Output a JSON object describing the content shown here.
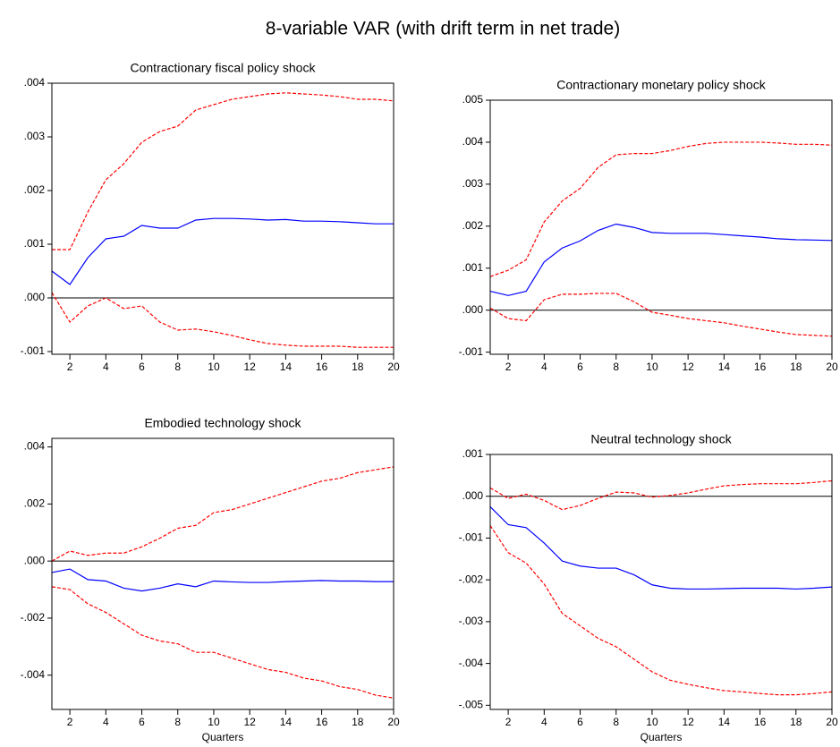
{
  "title": "8-variable VAR (with drift term in net trade)",
  "chart_data": [
    {
      "type": "line",
      "title": "Contractionary fiscal policy shock",
      "x": [
        1,
        2,
        3,
        4,
        5,
        6,
        7,
        8,
        9,
        10,
        11,
        12,
        13,
        14,
        15,
        16,
        17,
        18,
        19,
        20
      ],
      "xlim": [
        1,
        20
      ],
      "xticks": [
        2,
        4,
        6,
        8,
        10,
        12,
        14,
        16,
        18,
        20
      ],
      "ylim": [
        -0.00105,
        0.004
      ],
      "yticks": [
        {
          "value": -0.001,
          "label": "-.001"
        },
        {
          "value": 0,
          "label": ".000"
        },
        {
          "value": 0.001,
          "label": ".001"
        },
        {
          "value": 0.002,
          "label": ".002"
        },
        {
          "value": 0.003,
          "label": ".003"
        },
        {
          "value": 0.004,
          "label": ".004"
        }
      ],
      "hline": 0,
      "series": [
        {
          "color": "#0000ff",
          "style": "solid",
          "values": [
            0.0005,
            0.00025,
            0.00075,
            0.0011,
            0.00115,
            0.00135,
            0.0013,
            0.0013,
            0.00145,
            0.00148,
            0.00148,
            0.00147,
            0.00145,
            0.00146,
            0.00143,
            0.00143,
            0.00142,
            0.0014,
            0.00138,
            0.00138
          ]
        },
        {
          "color": "#ff0000",
          "style": "dashed",
          "values": [
            0.0009,
            0.0009,
            0.0016,
            0.0022,
            0.0025,
            0.0029,
            0.0031,
            0.0032,
            0.0035,
            0.0036,
            0.0037,
            0.00375,
            0.0038,
            0.00382,
            0.0038,
            0.00378,
            0.00375,
            0.0037,
            0.0037,
            0.00367
          ]
        },
        {
          "color": "#ff0000",
          "style": "dashed",
          "values": [
            0.0001,
            -0.00045,
            -0.00015,
            0,
            -0.0002,
            -0.00015,
            -0.00045,
            -0.0006,
            -0.00058,
            -0.00063,
            -0.0007,
            -0.00078,
            -0.00085,
            -0.00088,
            -0.0009,
            -0.0009,
            -0.0009,
            -0.00092,
            -0.00092,
            -0.00092
          ]
        }
      ]
    },
    {
      "type": "line",
      "title": "Contractionary monetary policy shock",
      "x": [
        1,
        2,
        3,
        4,
        5,
        6,
        7,
        8,
        9,
        10,
        11,
        12,
        13,
        14,
        15,
        16,
        17,
        18,
        19,
        20
      ],
      "xlim": [
        1,
        20
      ],
      "xticks": [
        2,
        4,
        6,
        8,
        10,
        12,
        14,
        16,
        18,
        20
      ],
      "ylim": [
        -0.00105,
        0.005
      ],
      "yticks": [
        {
          "value": -0.001,
          "label": "-.001"
        },
        {
          "value": 0,
          "label": ".000"
        },
        {
          "value": 0.001,
          "label": ".001"
        },
        {
          "value": 0.002,
          "label": ".002"
        },
        {
          "value": 0.003,
          "label": ".003"
        },
        {
          "value": 0.004,
          "label": ".004"
        },
        {
          "value": 0.005,
          "label": ".005"
        }
      ],
      "hline": 0,
      "series": [
        {
          "color": "#0000ff",
          "style": "solid",
          "values": [
            0.00045,
            0.00035,
            0.00045,
            0.00115,
            0.00148,
            0.00165,
            0.0019,
            0.00205,
            0.00197,
            0.00185,
            0.00183,
            0.00183,
            0.00183,
            0.0018,
            0.00177,
            0.00174,
            0.0017,
            0.00168,
            0.00167,
            0.00166
          ]
        },
        {
          "color": "#ff0000",
          "style": "dashed",
          "values": [
            0.0008,
            0.00095,
            0.0012,
            0.0021,
            0.0026,
            0.0029,
            0.0034,
            0.0037,
            0.00373,
            0.00373,
            0.0038,
            0.0039,
            0.00397,
            0.004,
            0.004,
            0.004,
            0.00398,
            0.00395,
            0.00395,
            0.00393
          ]
        },
        {
          "color": "#ff0000",
          "style": "dashed",
          "values": [
            5e-05,
            -0.0002,
            -0.00025,
            0.00025,
            0.00038,
            0.00038,
            0.0004,
            0.0004,
            0.0002,
            -5e-05,
            -0.00012,
            -0.0002,
            -0.00025,
            -0.0003,
            -0.00038,
            -0.00045,
            -0.00052,
            -0.00058,
            -0.0006,
            -0.00062
          ]
        }
      ]
    },
    {
      "type": "line",
      "title": "Embodied technology shock",
      "xlabel": "Quarters",
      "x": [
        1,
        2,
        3,
        4,
        5,
        6,
        7,
        8,
        9,
        10,
        11,
        12,
        13,
        14,
        15,
        16,
        17,
        18,
        19,
        20
      ],
      "xlim": [
        1,
        20
      ],
      "xticks": [
        2,
        4,
        6,
        8,
        10,
        12,
        14,
        16,
        18,
        20
      ],
      "ylim": [
        -0.0052,
        0.0043
      ],
      "yticks": [
        {
          "value": -0.004,
          "label": "-.004"
        },
        {
          "value": -0.002,
          "label": "-.002"
        },
        {
          "value": 0,
          "label": ".000"
        },
        {
          "value": 0.002,
          "label": ".002"
        },
        {
          "value": 0.004,
          "label": ".004"
        }
      ],
      "hline": 0,
      "series": [
        {
          "color": "#0000ff",
          "style": "solid",
          "values": [
            -0.0004,
            -0.00028,
            -0.00065,
            -0.0007,
            -0.00095,
            -0.00105,
            -0.00095,
            -0.0008,
            -0.0009,
            -0.0007,
            -0.00073,
            -0.00075,
            -0.00075,
            -0.00072,
            -0.0007,
            -0.00068,
            -0.0007,
            -0.0007,
            -0.00072,
            -0.00072
          ]
        },
        {
          "color": "#ff0000",
          "style": "dashed",
          "values": [
            0,
            0.00035,
            0.0002,
            0.00028,
            0.00028,
            0.0005,
            0.0008,
            0.00115,
            0.00125,
            0.0017,
            0.0018,
            0.002,
            0.0022,
            0.0024,
            0.0026,
            0.0028,
            0.0029,
            0.0031,
            0.0032,
            0.0033
          ]
        },
        {
          "color": "#ff0000",
          "style": "dashed",
          "values": [
            -0.0009,
            -0.001,
            -0.0015,
            -0.0018,
            -0.0022,
            -0.0026,
            -0.0028,
            -0.0029,
            -0.0032,
            -0.0032,
            -0.0034,
            -0.0036,
            -0.0038,
            -0.0039,
            -0.0041,
            -0.0042,
            -0.0044,
            -0.0045,
            -0.0047,
            -0.0048
          ]
        }
      ]
    },
    {
      "type": "line",
      "title": "Neutral technology shock",
      "xlabel": "Quarters",
      "x": [
        1,
        2,
        3,
        4,
        5,
        6,
        7,
        8,
        9,
        10,
        11,
        12,
        13,
        14,
        15,
        16,
        17,
        18,
        19,
        20
      ],
      "xlim": [
        1,
        20
      ],
      "xticks": [
        2,
        4,
        6,
        8,
        10,
        12,
        14,
        16,
        18,
        20
      ],
      "ylim": [
        -0.0051,
        0.001
      ],
      "yticks": [
        {
          "value": -0.005,
          "label": "-.005"
        },
        {
          "value": -0.004,
          "label": "-.004"
        },
        {
          "value": -0.003,
          "label": "-.003"
        },
        {
          "value": -0.002,
          "label": "-.002"
        },
        {
          "value": -0.001,
          "label": "-.001"
        },
        {
          "value": 0,
          "label": ".000"
        },
        {
          "value": 0.001,
          "label": ".001"
        }
      ],
      "hline": 0,
      "series": [
        {
          "color": "#0000ff",
          "style": "solid",
          "values": [
            -0.00025,
            -0.00068,
            -0.00075,
            -0.00112,
            -0.00155,
            -0.00167,
            -0.00172,
            -0.00172,
            -0.00188,
            -0.00212,
            -0.0022,
            -0.00222,
            -0.00222,
            -0.00221,
            -0.0022,
            -0.0022,
            -0.0022,
            -0.00222,
            -0.0022,
            -0.00217
          ]
        },
        {
          "color": "#ff0000",
          "style": "dashed",
          "values": [
            0.0002,
            -5e-05,
            5e-05,
            -0.0001,
            -0.00032,
            -0.00022,
            -5e-05,
            0.0001,
            8e-05,
            -2e-05,
            2e-05,
            8e-05,
            0.00017,
            0.00025,
            0.00028,
            0.0003,
            0.0003,
            0.0003,
            0.00033,
            0.00037
          ]
        },
        {
          "color": "#ff0000",
          "style": "dashed",
          "values": [
            -0.0007,
            -0.00135,
            -0.0016,
            -0.0021,
            -0.0028,
            -0.0031,
            -0.0034,
            -0.0036,
            -0.0039,
            -0.0042,
            -0.0044,
            -0.0045,
            -0.00458,
            -0.00465,
            -0.00468,
            -0.00472,
            -0.00475,
            -0.00475,
            -0.00472,
            -0.00468
          ]
        }
      ]
    }
  ]
}
